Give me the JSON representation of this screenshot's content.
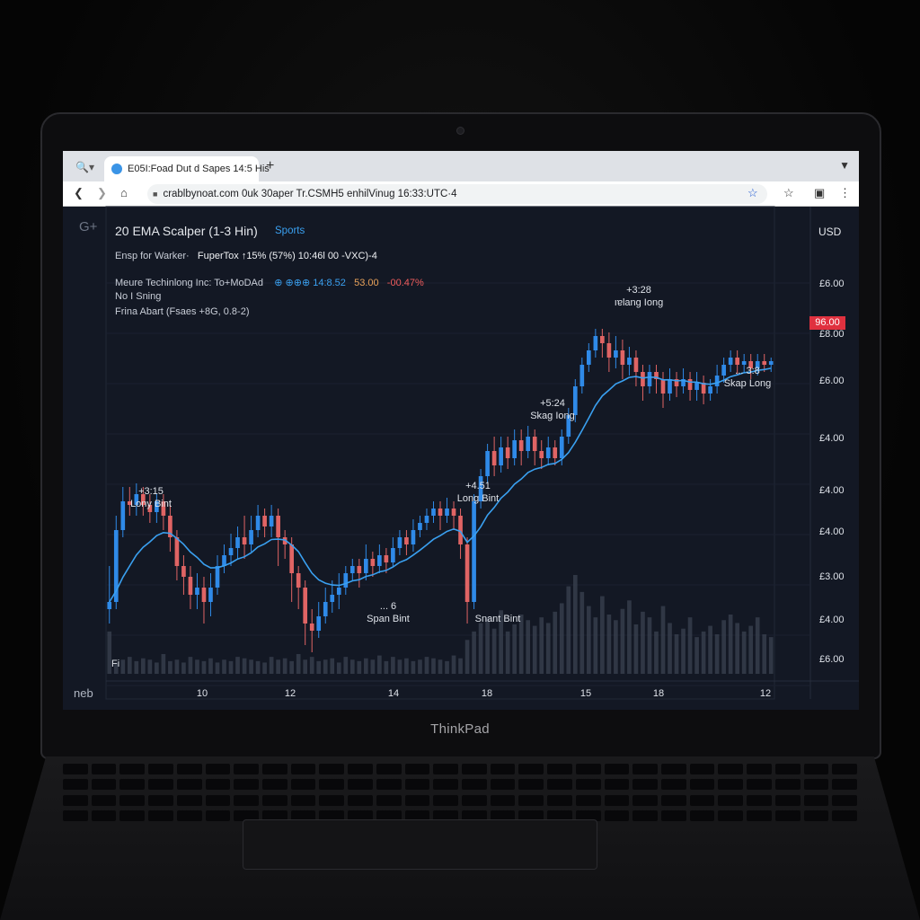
{
  "browser": {
    "tab_title": "E05I:Foad Dut d Sapes 14:5 His",
    "url": "crablbynoat.com 0uk 30aper Tr.CSMH5 enhilVinug 16:33:UTC·4"
  },
  "app": {
    "logo": "G+",
    "footer_logo": "neb",
    "title": "20 EMA Scalper (1-3 Hin)",
    "title_tag": "Sports",
    "legend": {
      "line1_label": "Ensp for Warker·",
      "line1_value": "FuperTox ↑15% (57%) 10:46l 00 -VXC)-4",
      "line2_label": "Meure Techinlong Inc:  To+MoDAd",
      "line2_value": "⊕ ⊕⊕⊕ 14:8.52",
      "line2_change_a": "53.00",
      "line2_change_b": "-00.47%",
      "line3": "No  I Sning",
      "line4": "Frina Abart (Fsaes +8G, 0.8-2)"
    },
    "currency": "USD",
    "current_price": "96.00",
    "price_labels": [
      "£6.00",
      "£8.00",
      "£6.00",
      "£4.00",
      "£4.00",
      "£4.00",
      "£3.00",
      "£4.00",
      "£6.00"
    ],
    "x_labels": [
      "10",
      "12",
      "14",
      "18",
      "15",
      "18",
      "12"
    ],
    "annotations": [
      {
        "line1": "+3:15",
        "line2": "Lony Bint"
      },
      {
        "line1": "... 6",
        "line2": "Span Bint"
      },
      {
        "line1": "+4.51",
        "line2": "Long Bint"
      },
      {
        "line1": "",
        "line2": "Snant Bint"
      },
      {
        "line1": "+5:24",
        "line2": "Skag Iong"
      },
      {
        "line1": "+3:28",
        "line2": "ıɐlang Iong"
      },
      {
        "line1": "... 3:8",
        "line2": "Skap Long"
      }
    ],
    "volume_watermark": "Fi"
  },
  "brand": "ThinkPad",
  "colors": {
    "up": "#2f8ae8",
    "down": "#e06464",
    "ema": "#3aa0f0",
    "bg": "#131824",
    "price_tag": "#e0313f"
  },
  "chart_data": {
    "type": "candlestick",
    "title": "20 EMA Scalper (1-3 Hin)",
    "y_axis_labels": [
      "£6.00",
      "£8.00",
      "£6.00",
      "£4.00",
      "£4.00",
      "£4.00",
      "£3.00",
      "£4.00",
      "£6.00"
    ],
    "x_axis_labels": [
      "10",
      "12",
      "14",
      "18",
      "15",
      "18",
      "12"
    ],
    "price_unit": "index (0 = chart low, 100 = chart high)",
    "candles": [
      [
        18,
        20,
        14,
        30
      ],
      [
        20,
        40,
        18,
        44
      ],
      [
        40,
        48,
        38,
        52
      ],
      [
        48,
        47,
        44,
        52
      ],
      [
        47,
        50,
        44,
        53
      ],
      [
        50,
        47,
        44,
        52
      ],
      [
        47,
        45,
        42,
        50
      ],
      [
        45,
        48,
        42,
        50
      ],
      [
        48,
        44,
        40,
        50
      ],
      [
        44,
        38,
        34,
        47
      ],
      [
        38,
        30,
        26,
        40
      ],
      [
        30,
        27,
        22,
        33
      ],
      [
        27,
        22,
        18,
        30
      ],
      [
        22,
        24,
        18,
        28
      ],
      [
        24,
        20,
        14,
        27
      ],
      [
        20,
        24,
        16,
        28
      ],
      [
        24,
        30,
        22,
        33
      ],
      [
        30,
        33,
        28,
        36
      ],
      [
        33,
        35,
        30,
        39
      ],
      [
        35,
        38,
        32,
        41
      ],
      [
        38,
        36,
        32,
        44
      ],
      [
        36,
        40,
        34,
        44
      ],
      [
        40,
        44,
        38,
        47
      ],
      [
        44,
        41,
        38,
        46
      ],
      [
        41,
        44,
        38,
        47
      ],
      [
        44,
        38,
        30,
        46
      ],
      [
        38,
        36,
        32,
        40
      ],
      [
        36,
        28,
        20,
        38
      ],
      [
        28,
        24,
        18,
        30
      ],
      [
        24,
        14,
        8,
        26
      ],
      [
        14,
        12,
        6,
        18
      ],
      [
        12,
        16,
        10,
        20
      ],
      [
        16,
        20,
        14,
        24
      ],
      [
        20,
        22,
        17,
        26
      ],
      [
        22,
        24,
        18,
        28
      ],
      [
        24,
        28,
        22,
        30
      ],
      [
        28,
        30,
        26,
        32
      ],
      [
        30,
        28,
        24,
        32
      ],
      [
        28,
        32,
        26,
        36
      ],
      [
        32,
        30,
        27,
        34
      ],
      [
        30,
        33,
        28,
        36
      ],
      [
        33,
        31,
        28,
        35
      ],
      [
        31,
        35,
        30,
        38
      ],
      [
        35,
        38,
        33,
        40
      ],
      [
        38,
        36,
        33,
        40
      ],
      [
        36,
        40,
        34,
        43
      ],
      [
        40,
        42,
        38,
        44
      ],
      [
        42,
        44,
        40,
        46
      ],
      [
        44,
        46,
        42,
        48
      ],
      [
        46,
        44,
        40,
        48
      ],
      [
        44,
        46,
        42,
        49
      ],
      [
        46,
        44,
        40,
        48
      ],
      [
        44,
        36,
        32,
        46
      ],
      [
        36,
        20,
        14,
        38
      ],
      [
        20,
        48,
        18,
        50
      ],
      [
        48,
        55,
        46,
        57
      ],
      [
        55,
        62,
        53,
        64
      ],
      [
        62,
        58,
        55,
        66
      ],
      [
        58,
        63,
        56,
        66
      ],
      [
        63,
        60,
        57,
        66
      ],
      [
        60,
        65,
        58,
        68
      ],
      [
        65,
        62,
        58,
        68
      ],
      [
        62,
        66,
        60,
        69
      ],
      [
        66,
        62,
        58,
        68
      ],
      [
        62,
        60,
        57,
        65
      ],
      [
        60,
        63,
        58,
        66
      ],
      [
        63,
        60,
        58,
        65
      ],
      [
        60,
        66,
        58,
        68
      ],
      [
        66,
        72,
        64,
        74
      ],
      [
        72,
        80,
        70,
        82
      ],
      [
        80,
        86,
        78,
        88
      ],
      [
        86,
        90,
        84,
        92
      ],
      [
        90,
        94,
        88,
        96
      ],
      [
        94,
        92,
        88,
        96
      ],
      [
        92,
        88,
        84,
        95
      ],
      [
        88,
        90,
        85,
        94
      ],
      [
        90,
        86,
        82,
        93
      ],
      [
        86,
        88,
        83,
        91
      ],
      [
        88,
        84,
        80,
        90
      ],
      [
        84,
        80,
        76,
        86
      ],
      [
        80,
        84,
        78,
        86
      ],
      [
        84,
        82,
        78,
        86
      ],
      [
        82,
        78,
        74,
        84
      ],
      [
        78,
        82,
        76,
        85
      ],
      [
        82,
        80,
        77,
        84
      ],
      [
        80,
        82,
        78,
        85
      ],
      [
        82,
        79,
        76,
        84
      ],
      [
        79,
        81,
        76,
        84
      ],
      [
        81,
        78,
        75,
        83
      ],
      [
        78,
        80,
        76,
        82
      ],
      [
        80,
        83,
        78,
        86
      ],
      [
        83,
        86,
        81,
        88
      ],
      [
        86,
        88,
        84,
        90
      ],
      [
        88,
        86,
        83,
        90
      ],
      [
        86,
        87,
        84,
        89
      ],
      [
        87,
        85,
        82,
        89
      ],
      [
        85,
        87,
        83,
        89
      ],
      [
        87,
        86,
        84,
        89
      ],
      [
        86,
        87,
        84,
        88
      ]
    ],
    "volumes": [
      30,
      8,
      10,
      12,
      9,
      11,
      10,
      8,
      14,
      9,
      10,
      8,
      12,
      10,
      9,
      11,
      8,
      10,
      9,
      12,
      11,
      10,
      9,
      8,
      12,
      10,
      11,
      9,
      14,
      10,
      12,
      9,
      10,
      11,
      8,
      12,
      10,
      9,
      11,
      10,
      13,
      9,
      12,
      10,
      11,
      9,
      10,
      12,
      11,
      10,
      9,
      13,
      11,
      24,
      30,
      36,
      40,
      32,
      45,
      30,
      35,
      42,
      38,
      34,
      40,
      36,
      44,
      50,
      62,
      70,
      58,
      48,
      40,
      55,
      42,
      38,
      46,
      52,
      35,
      44,
      40,
      30,
      48,
      36,
      28,
      32,
      40,
      26,
      30,
      34,
      28,
      38,
      42,
      36,
      30,
      34,
      40,
      28,
      26
    ]
  }
}
